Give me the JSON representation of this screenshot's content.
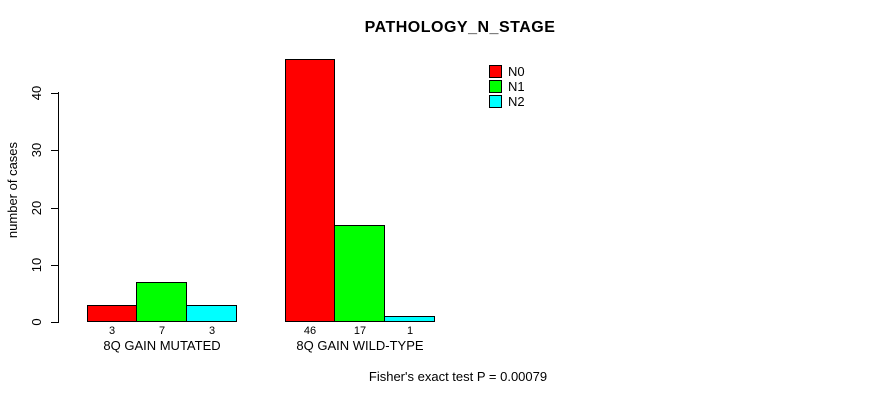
{
  "chart_data": {
    "type": "bar",
    "title": "PATHOLOGY_N_STAGE",
    "ylabel": "number of cases",
    "xlabel": "",
    "categories": [
      "8Q GAIN MUTATED",
      "8Q GAIN WILD-TYPE"
    ],
    "series": [
      {
        "name": "N0",
        "color": "#ff0000",
        "values": [
          3,
          46
        ]
      },
      {
        "name": "N1",
        "color": "#00ff00",
        "values": [
          7,
          17
        ]
      },
      {
        "name": "N2",
        "color": "#00ffff",
        "values": [
          3,
          1
        ]
      }
    ],
    "ylim": [
      0,
      46
    ],
    "yticks": [
      0,
      10,
      20,
      30,
      40
    ],
    "grid": false,
    "legend_position": "top-right",
    "bar_value_labels": true,
    "annotation": "Fisher's exact test P = 0.00079"
  },
  "colors": {
    "background": "#ffffff",
    "axis": "#000000",
    "text": "#000000"
  }
}
